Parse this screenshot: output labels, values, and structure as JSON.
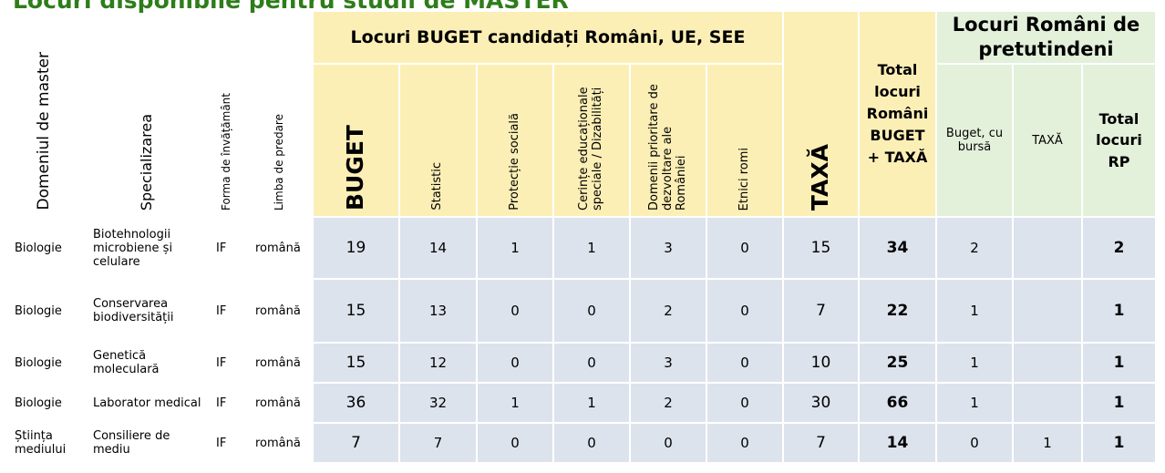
{
  "title": "Locuri disponibile pentru studii de MASTER",
  "header": {
    "group_buget": "Locuri BUGET candidați Români, UE, SEE",
    "group_rp": "Locuri Români de pretutindeni",
    "columns": [
      "Domeniul de master",
      "Specializarea",
      "Forma de învățământ",
      "Limba de predare",
      "BUGET",
      "Statistic",
      "Protecție socială",
      "Cerințe educaționale speciale / Dizabilități",
      "Domenii prioritare de dezvoltare ale României",
      "Etnici romi",
      "TAXĂ",
      "Total locuri Români BUGET + TAXĂ",
      "Buget, cu bursă",
      "TAXĂ",
      "Total locuri RP"
    ]
  },
  "rows": [
    [
      "Biologie",
      "Biotehnologii microbiene și celulare",
      "IF",
      "română",
      19,
      14,
      1,
      1,
      3,
      0,
      15,
      34,
      2,
      null,
      2
    ],
    [
      "Biologie",
      "Conservarea biodiversității",
      "IF",
      "română",
      15,
      13,
      0,
      0,
      2,
      0,
      7,
      22,
      1,
      null,
      1
    ],
    [
      "Biologie",
      "Genetică moleculară",
      "IF",
      "română",
      15,
      12,
      0,
      0,
      3,
      0,
      10,
      25,
      1,
      null,
      1
    ],
    [
      "Biologie",
      "Laborator medical",
      "IF",
      "română",
      36,
      32,
      1,
      1,
      2,
      0,
      30,
      66,
      1,
      null,
      1
    ],
    [
      "Știința mediului",
      "Consiliere de mediu",
      "IF",
      "română",
      7,
      7,
      0,
      0,
      0,
      0,
      7,
      14,
      0,
      1,
      1
    ]
  ]
}
